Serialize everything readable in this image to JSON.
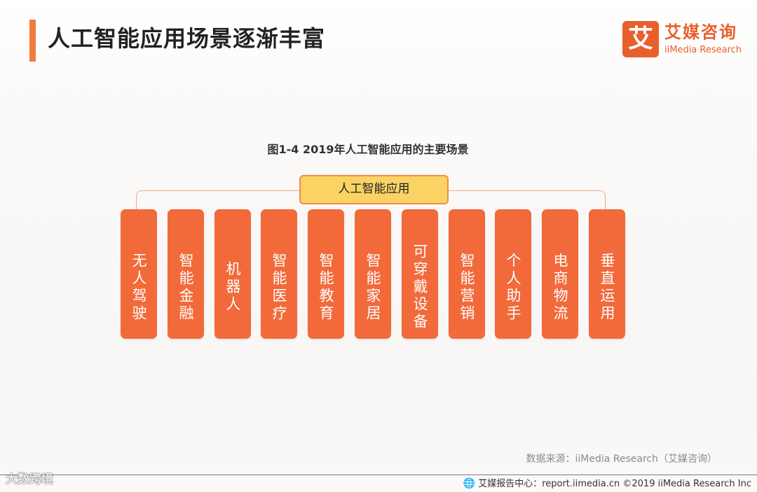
{
  "header": {
    "title": "人工智能应用场景逐渐丰富",
    "logo_mark": "艾",
    "logo_cn": "艾媒咨询",
    "logo_en": "iiMedia Research"
  },
  "figure": {
    "title": "图1-4 2019年人工智能应用的主要场景",
    "root": "人工智能应用",
    "branches": [
      "无人驾驶",
      "智能金融",
      "机器人",
      "智能医疗",
      "智能教育",
      "智能家居",
      "可穿戴设备",
      "智能营销",
      "个人助手",
      "电商物流",
      "垂直运用"
    ]
  },
  "source": "数据来源：iiMedia Research（艾媒咨询）",
  "footer": {
    "icon": "globe-icon",
    "text": "艾媒报告中心：report.iimedia.cn ©2019 iiMedia Research Inc"
  },
  "watermark": "大数跨境",
  "colors": {
    "accent": "#f07b3f",
    "branch": "#f26a3a",
    "root_fill": "#fbd364",
    "brand": "#e95f2c"
  }
}
